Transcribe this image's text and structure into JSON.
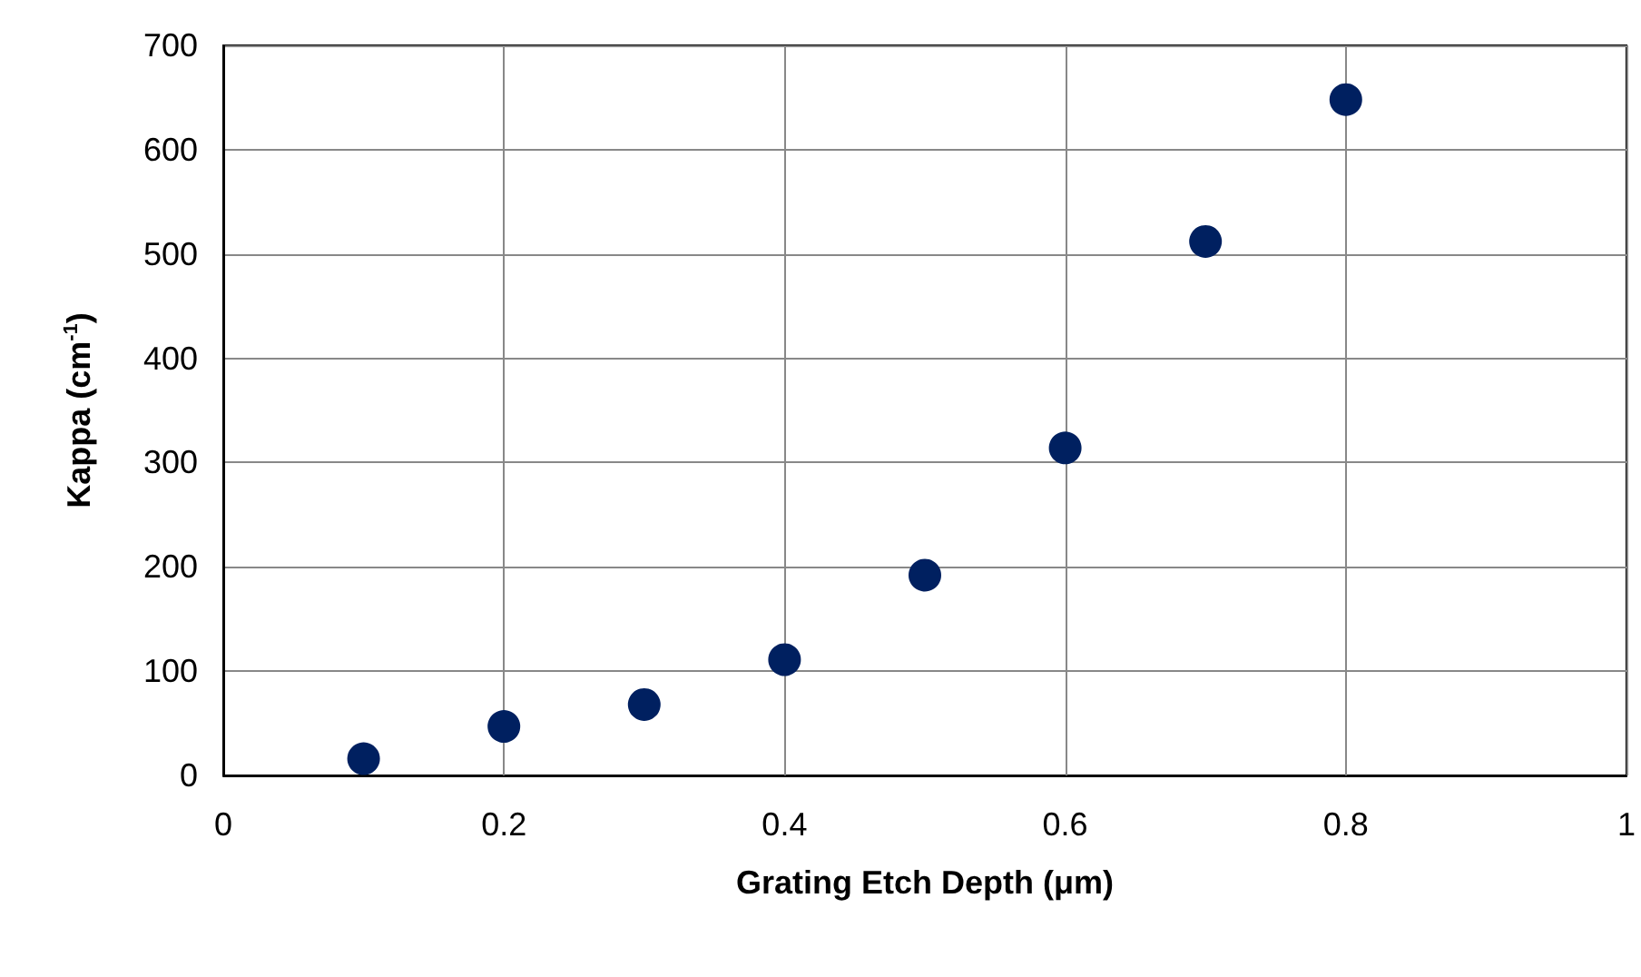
{
  "chart_data": {
    "type": "scatter",
    "xlabel": "Grating Etch Depth (μm)",
    "ylabel": "Kappa (cm$^{-1}$)",
    "x": [
      0.1,
      0.2,
      0.3,
      0.4,
      0.5,
      0.6,
      0.7,
      0.8
    ],
    "series": [
      {
        "color": "#002060",
        "values": [
          16,
          47,
          68,
          111,
          192,
          314,
          512,
          648
        ]
      }
    ],
    "xlim": [
      0,
      1
    ],
    "xticks": [
      0,
      0.2,
      0.4,
      0.6,
      0.8,
      1
    ],
    "ylim": [
      0,
      700
    ],
    "yticks": [
      0,
      100,
      200,
      300,
      400,
      500,
      600,
      700
    ],
    "grid": true,
    "marker": "circle"
  }
}
